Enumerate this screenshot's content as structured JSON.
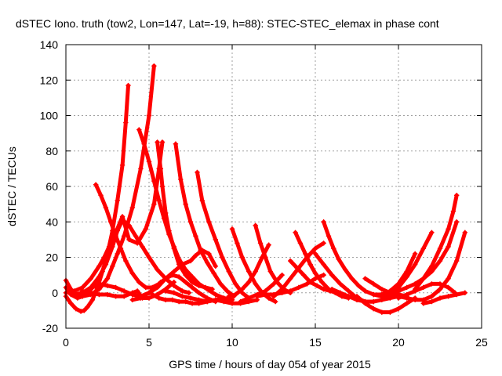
{
  "chart_data": {
    "type": "scatter",
    "title": "dSTEC Iono. truth (tow2, Lon=147, Lat=-19, h=88): STEC-STEC_elemax in phase cont",
    "xlabel": "GPS time / hours of day 054 of year 2015",
    "ylabel": "dSTEC  / TECUs",
    "xlim": [
      0,
      25
    ],
    "ylim": [
      -20,
      140
    ],
    "xticks": [
      0,
      5,
      10,
      15,
      20,
      25
    ],
    "yticks": [
      -20,
      0,
      20,
      40,
      60,
      80,
      100,
      120,
      140
    ],
    "grid": true,
    "legend": "none",
    "marker": "plus",
    "color": "#ff0000",
    "series": [
      {
        "x": [
          0.0,
          0.3,
          0.6,
          0.9,
          1.1,
          1.3,
          1.6,
          1.9,
          2.2,
          2.5,
          2.8,
          3.1,
          3.4,
          3.6,
          3.75
        ],
        "y": [
          -2,
          -6,
          -9,
          -10.5,
          -10,
          -8,
          -4,
          3,
          12,
          22,
          35,
          52,
          72,
          96,
          117
        ]
      },
      {
        "x": [
          0.0,
          0.3,
          0.6,
          1.0,
          1.5,
          2.0,
          2.5,
          2.8,
          3.1,
          3.5,
          4.0,
          4.5,
          5.0,
          5.3
        ],
        "y": [
          7,
          2,
          -1,
          -2,
          -1,
          2,
          8,
          15,
          22,
          32,
          48,
          70,
          100,
          128
        ]
      },
      {
        "x": [
          0.0,
          0.5,
          1.0,
          1.5,
          2.0,
          2.3,
          2.6,
          3.0,
          3.4,
          3.8,
          4.3,
          4.8,
          5.3,
          5.6,
          5.8
        ],
        "y": [
          0,
          1,
          3,
          8,
          15,
          20,
          26,
          34,
          43,
          30,
          28,
          36,
          50,
          70,
          85
        ]
      },
      {
        "x": [
          0.5,
          1.0,
          1.5,
          2.0,
          2.4,
          2.8,
          3.1,
          3.4,
          3.8,
          4.2,
          4.6,
          5.0,
          5.5,
          6.0,
          6.5,
          7.0,
          7.4
        ],
        "y": [
          -1,
          0,
          3,
          9,
          16,
          26,
          35,
          41,
          38,
          32,
          26,
          20,
          13,
          8,
          4,
          1,
          0
        ]
      },
      {
        "x": [
          1.8,
          2.1,
          2.4,
          2.7,
          3.0,
          3.3,
          3.6,
          4.0,
          4.4,
          4.8,
          5.2,
          5.6,
          6.0,
          6.4,
          6.8,
          7.2,
          7.6,
          8.0,
          8.5,
          9.0
        ],
        "y": [
          61,
          55,
          48,
          40,
          32,
          25,
          18,
          11,
          6,
          3,
          3,
          5,
          8,
          10,
          9,
          6,
          3,
          0,
          -3,
          -5
        ]
      },
      {
        "x": [
          0.0,
          0.3,
          0.7,
          1.0,
          1.3,
          1.6,
          2.0,
          2.5,
          3.0,
          3.5,
          4.0,
          4.5,
          5.0,
          5.4,
          5.7
        ],
        "y": [
          3,
          -1,
          -3,
          -2,
          0,
          3,
          5,
          4,
          3,
          1,
          -1,
          -2,
          0,
          3,
          6
        ]
      },
      {
        "x": [
          1.0,
          1.5,
          2.0,
          2.5,
          3.0,
          3.5,
          4.0,
          4.3,
          4.6,
          5.0,
          5.5,
          6.0,
          6.5
        ],
        "y": [
          1,
          0,
          -1,
          -1,
          -2,
          -2,
          0,
          1,
          -3,
          -3,
          -1,
          2,
          6
        ]
      },
      {
        "x": [
          4.4,
          4.7,
          5.0,
          5.3,
          5.6,
          5.9,
          6.2,
          6.5,
          6.8,
          7.2,
          7.6,
          8.0,
          8.5,
          9.0,
          9.5
        ],
        "y": [
          92,
          84,
          74,
          63,
          52,
          42,
          33,
          26,
          19,
          13,
          9,
          5,
          2,
          -1,
          -3
        ]
      },
      {
        "x": [
          5.5,
          5.7,
          5.8,
          6.0,
          6.2,
          6.5,
          6.8,
          7.2,
          7.6,
          8.0,
          8.4,
          8.8
        ],
        "y": [
          85,
          70,
          60,
          45,
          35,
          25,
          16,
          10,
          6,
          4,
          3,
          2
        ]
      },
      {
        "x": [
          5.2,
          5.6,
          6.0,
          6.4,
          6.8,
          7.2,
          7.6,
          8.0,
          8.5,
          9.0,
          9.5,
          10.0
        ],
        "y": [
          -1,
          -3,
          -4,
          -4,
          -5,
          -5,
          -6,
          -6,
          -5,
          -4,
          -3,
          -4
        ]
      },
      {
        "x": [
          4.0,
          4.5,
          5.0,
          5.5,
          6.0,
          6.5,
          7.0,
          7.5,
          7.8,
          8.2,
          8.6,
          9.0
        ],
        "y": [
          -4,
          -3,
          0,
          3,
          8,
          12,
          16,
          18,
          21,
          24,
          22,
          15
        ]
      },
      {
        "x": [
          6.6,
          6.9,
          7.2,
          7.5,
          7.8,
          8.1,
          8.5,
          8.9,
          9.3,
          9.7,
          10.1
        ],
        "y": [
          84,
          64,
          50,
          40,
          32,
          24,
          17,
          11,
          5,
          1,
          -2
        ]
      },
      {
        "x": [
          7.9,
          8.2,
          8.6,
          9.0,
          9.4,
          9.8,
          10.2,
          10.6,
          11.0
        ],
        "y": [
          68,
          52,
          40,
          30,
          20,
          12,
          5,
          0,
          -3
        ]
      },
      {
        "x": [
          6.0,
          6.5,
          7.0,
          7.5,
          8.0,
          8.5,
          9.0,
          9.5,
          10.0,
          10.5,
          11.0,
          11.5
        ],
        "y": [
          1,
          0,
          -2,
          -3,
          -4,
          -5,
          -4,
          -5,
          -6,
          -6,
          -5,
          -4
        ]
      },
      {
        "x": [
          10.0,
          10.3,
          10.6,
          11.0,
          11.4,
          11.8,
          12.2,
          12.6
        ],
        "y": [
          36,
          28,
          20,
          12,
          5,
          0,
          -3,
          -5
        ]
      },
      {
        "x": [
          11.4,
          11.7,
          12.0,
          12.3,
          12.7,
          13.1,
          13.5
        ],
        "y": [
          38,
          28,
          20,
          12,
          6,
          2,
          0
        ]
      },
      {
        "x": [
          9.8,
          10.2,
          10.6,
          11.0,
          11.4,
          11.8,
          12.2
        ],
        "y": [
          -2,
          -1,
          2,
          6,
          12,
          20,
          27
        ]
      },
      {
        "x": [
          10.5,
          11.0,
          11.5,
          12.0,
          12.5,
          13.0
        ],
        "y": [
          -5,
          -3,
          -1,
          1,
          5,
          10
        ]
      },
      {
        "x": [
          11.5,
          12.0,
          12.5,
          13.0,
          13.5,
          14.0,
          14.5,
          15.0,
          15.5
        ],
        "y": [
          -2,
          -1,
          -1,
          0,
          1,
          3,
          5,
          8,
          10
        ]
      },
      {
        "x": [
          13.8,
          14.1,
          14.4,
          14.7,
          15.0,
          15.4,
          15.8,
          16.2,
          16.6,
          17.0
        ],
        "y": [
          34,
          28,
          22,
          16,
          11,
          6,
          2,
          0,
          -2,
          -3
        ]
      },
      {
        "x": [
          13.5,
          13.9,
          14.3,
          14.7,
          15.1,
          15.5,
          15.9,
          16.3
        ],
        "y": [
          18,
          14,
          10,
          6,
          4,
          2,
          1,
          0
        ]
      },
      {
        "x": [
          12.5,
          13.0,
          13.5,
          14.0,
          14.5,
          15.0,
          15.5
        ],
        "y": [
          -2,
          2,
          8,
          14,
          20,
          25,
          28
        ]
      },
      {
        "x": [
          15.5,
          15.8,
          16.1,
          16.4,
          16.8,
          17.2,
          17.6,
          18.0,
          18.5,
          19.0,
          19.5,
          20.0
        ],
        "y": [
          40,
          32,
          25,
          19,
          13,
          8,
          4,
          1,
          -1,
          -2,
          -2,
          -2
        ]
      },
      {
        "x": [
          15.0,
          15.5,
          16.0,
          16.5,
          17.0,
          17.5,
          18.0,
          18.5
        ],
        "y": [
          22,
          16,
          10,
          5,
          1,
          -3,
          -5,
          -5
        ]
      },
      {
        "x": [
          16.0,
          16.5,
          17.0,
          17.5,
          18.0,
          18.5,
          19.0,
          19.5,
          20.0
        ],
        "y": [
          2,
          0,
          -2,
          -4,
          -5,
          -5,
          -4,
          -3,
          -2
        ]
      },
      {
        "x": [
          18.0,
          18.5,
          19.0,
          19.5,
          20.0,
          20.5
        ],
        "y": [
          8,
          5,
          2,
          0,
          -1,
          -2
        ]
      },
      {
        "x": [
          17.5,
          18.0,
          18.5,
          19.0,
          19.5,
          20.0,
          20.5,
          21.0
        ],
        "y": [
          -2,
          -6,
          -9,
          -11,
          -11,
          -9,
          -6,
          -3
        ]
      },
      {
        "x": [
          18.5,
          19.0,
          19.5,
          20.0,
          20.5,
          21.0,
          21.5,
          22.0,
          22.5,
          23.0,
          23.5
        ],
        "y": [
          -1,
          -1,
          0,
          1,
          3,
          5,
          8,
          12,
          18,
          26,
          40
        ]
      },
      {
        "x": [
          19.0,
          19.5,
          20.0,
          20.5,
          21.0
        ],
        "y": [
          -1,
          1,
          5,
          12,
          22
        ]
      },
      {
        "x": [
          19.5,
          20.0,
          20.5,
          21.0,
          21.5,
          22.0
        ],
        "y": [
          -1,
          3,
          9,
          16,
          25,
          34
        ]
      },
      {
        "x": [
          20.0,
          20.5,
          21.0,
          21.5,
          22.0,
          22.5,
          23.0,
          23.4
        ],
        "y": [
          -3,
          -1,
          1,
          3,
          5,
          5,
          3,
          0
        ]
      },
      {
        "x": [
          20.0,
          20.5,
          21.0,
          21.5,
          22.0,
          22.5,
          23.0,
          23.5,
          24.0
        ],
        "y": [
          -2,
          -3,
          -4,
          -4,
          -2,
          2,
          8,
          18,
          34
        ]
      },
      {
        "x": [
          21.5,
          22.0,
          22.5,
          23.0,
          23.5,
          24.0
        ],
        "y": [
          -6,
          -5,
          -3,
          -2,
          -1,
          0
        ]
      },
      {
        "x": [
          21.0,
          21.5,
          22.0,
          22.5,
          23.0,
          23.3,
          23.5
        ],
        "y": [
          2,
          8,
          15,
          25,
          36,
          46,
          55
        ]
      }
    ]
  }
}
